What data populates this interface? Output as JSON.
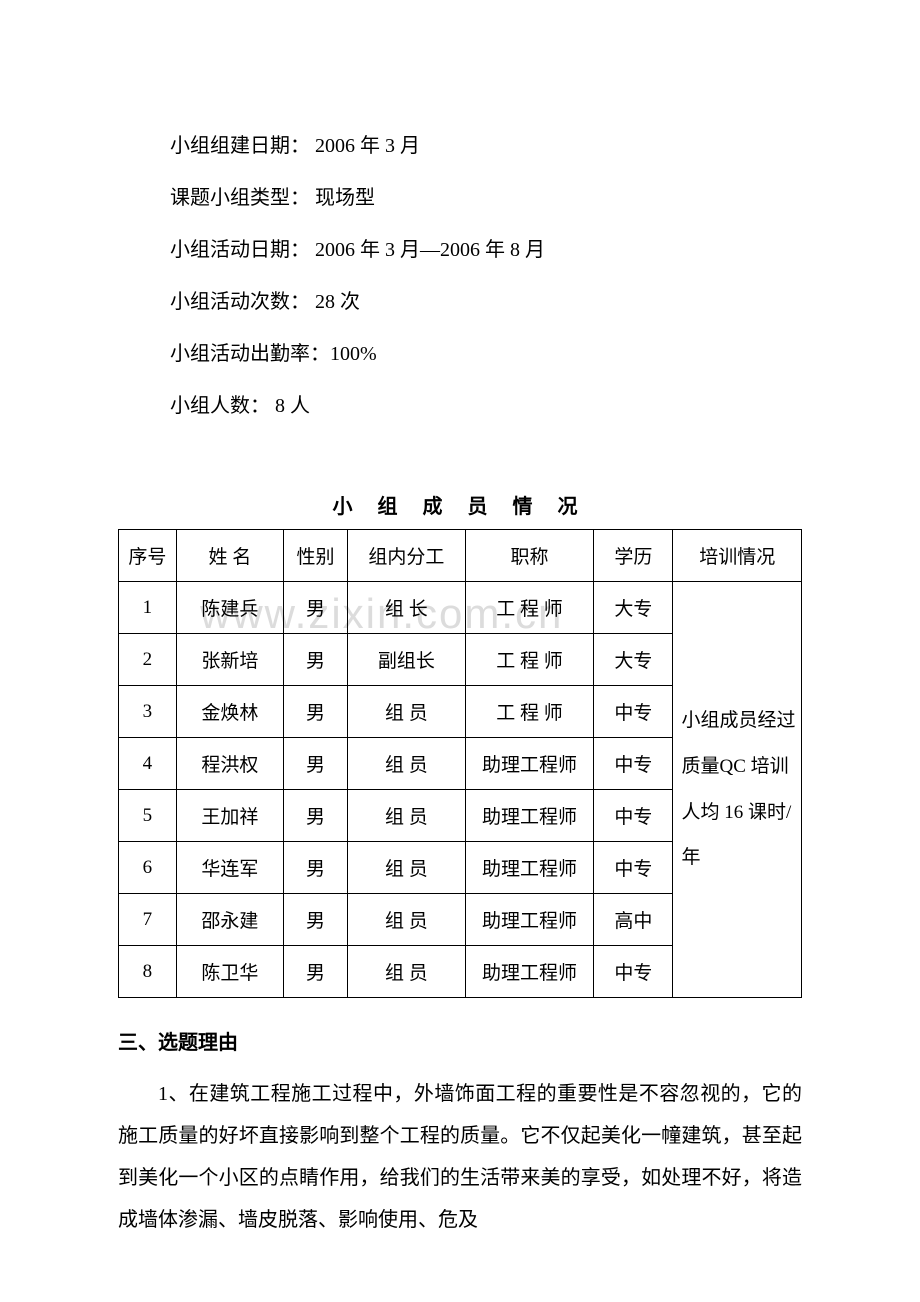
{
  "watermark": "www.zixin.com.cn",
  "info": {
    "line1": "小组组建日期：  2006 年 3 月",
    "line2": "课题小组类型：  现场型",
    "line3": "小组活动日期：  2006 年 3 月—2006 年 8 月",
    "line4": "小组活动次数：  28 次",
    "line5": "小组活动出勤率：100%",
    "line6": "小组人数：      8 人"
  },
  "table": {
    "title": "小 组 成 员 情 况",
    "headers": {
      "seq": "序号",
      "name": "姓 名",
      "gender": "性别",
      "role": "组内分工",
      "title": "职称",
      "edu": "学历",
      "train": "培训情况"
    },
    "rows": [
      {
        "seq": "1",
        "name": "陈建兵",
        "gender": "男",
        "role": "组  长",
        "title": "工 程 师",
        "edu": "大专"
      },
      {
        "seq": "2",
        "name": "张新培",
        "gender": "男",
        "role": "副组长",
        "title": "工 程 师",
        "edu": "大专"
      },
      {
        "seq": "3",
        "name": "金焕林",
        "gender": "男",
        "role": "组  员",
        "title": "工 程 师",
        "edu": "中专"
      },
      {
        "seq": "4",
        "name": "程洪权",
        "gender": "男",
        "role": "组  员",
        "title": "助理工程师",
        "edu": "中专"
      },
      {
        "seq": "5",
        "name": "王加祥",
        "gender": "男",
        "role": "组  员",
        "title": "助理工程师",
        "edu": "中专"
      },
      {
        "seq": "6",
        "name": "华连军",
        "gender": "男",
        "role": "组  员",
        "title": "助理工程师",
        "edu": "中专"
      },
      {
        "seq": "7",
        "name": "邵永建",
        "gender": "男",
        "role": "组  员",
        "title": "助理工程师",
        "edu": "高中"
      },
      {
        "seq": "8",
        "name": "陈卫华",
        "gender": "男",
        "role": "组  员",
        "title": "助理工程师",
        "edu": "中专"
      }
    ],
    "training_text": "小组成员经过质量QC 培训人均 16 课时/年"
  },
  "section3": {
    "heading": "三、选题理由",
    "para1": "1、在建筑工程施工过程中，外墙饰面工程的重要性是不容忽视的，它的施工质量的好坏直接影响到整个工程的质量。它不仅起美化一幢建筑，甚至起到美化一个小区的点睛作用，给我们的生活带来美的享受，如处理不好，将造成墙体渗漏、墙皮脱落、影响使用、危及"
  }
}
